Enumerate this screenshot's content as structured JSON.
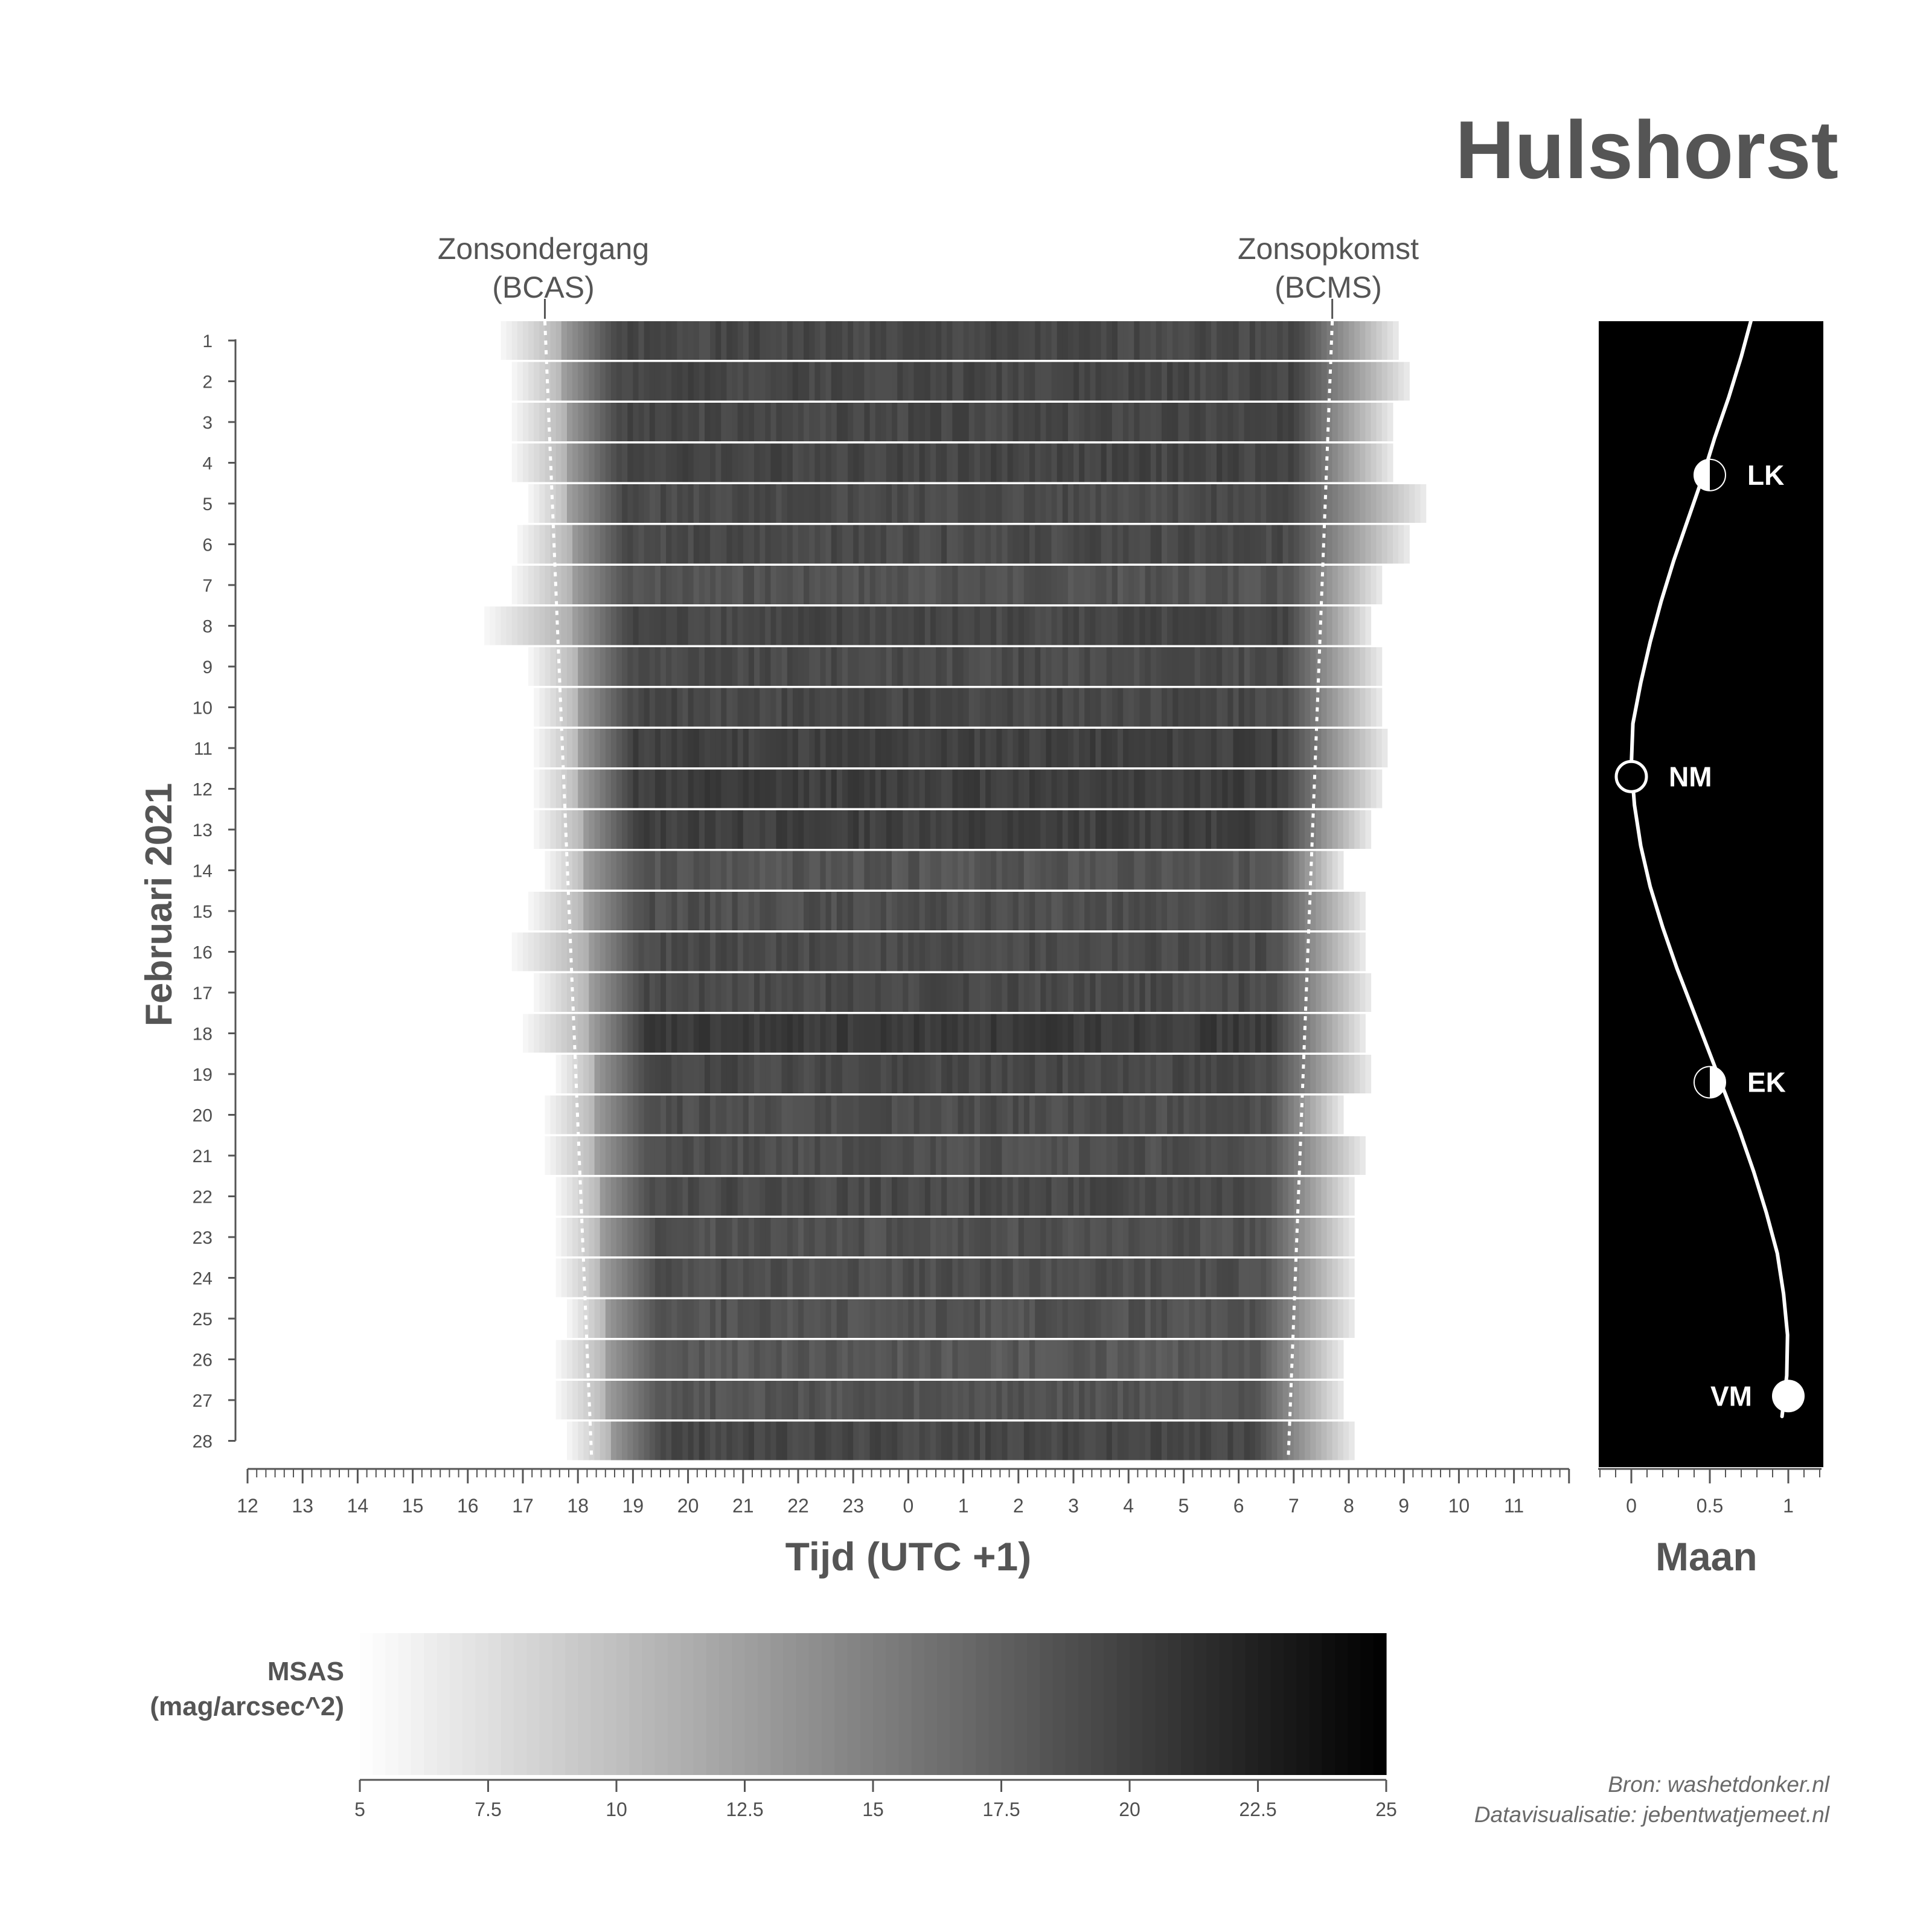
{
  "title": "Hulshorst",
  "annotations": {
    "sunset_line1": "Zonsondergang",
    "sunset_line2": "(BCAS)",
    "sunrise_line1": "Zonsopkomst",
    "sunrise_line2": "(BCMS)"
  },
  "colors": {
    "bright": "#ffffff",
    "dark": "#000000",
    "text": "#555555",
    "moon_panel": "#000000"
  },
  "chart_data": [
    {
      "type": "heatmap",
      "title": "Hulshorst",
      "xlabel": "Tijd (UTC +1)",
      "ylabel": "Februari 2021",
      "x_ticks": [
        "12",
        "13",
        "14",
        "15",
        "16",
        "17",
        "18",
        "19",
        "20",
        "21",
        "22",
        "23",
        "0",
        "1",
        "2",
        "3",
        "4",
        "5",
        "6",
        "7",
        "8",
        "9",
        "10",
        "11"
      ],
      "x_range_hours_after_noon": [
        0,
        24
      ],
      "days": [
        1,
        2,
        3,
        4,
        5,
        6,
        7,
        8,
        9,
        10,
        11,
        12,
        13,
        14,
        15,
        16,
        17,
        18,
        19,
        20,
        21,
        22,
        23,
        24,
        25,
        26,
        27,
        28
      ],
      "row_start_hour": [
        16.6,
        16.8,
        16.8,
        16.8,
        17.1,
        16.9,
        16.8,
        16.3,
        17.1,
        17.2,
        17.2,
        17.2,
        17.2,
        17.4,
        17.1,
        16.8,
        17.2,
        17.0,
        17.6,
        17.4,
        17.4,
        17.6,
        17.6,
        17.6,
        17.8,
        17.6,
        17.6,
        17.8
      ],
      "row_end_hour": [
        8.9,
        9.1,
        8.8,
        8.8,
        9.4,
        9.1,
        8.6,
        8.4,
        8.6,
        8.6,
        8.7,
        8.6,
        8.4,
        7.9,
        8.3,
        8.3,
        8.4,
        8.3,
        8.4,
        7.9,
        8.3,
        8.1,
        8.1,
        8.1,
        8.1,
        7.9,
        7.9,
        8.1
      ],
      "row_mean_msas": [
        19.4,
        19.6,
        19.5,
        19.7,
        19.2,
        19.3,
        18.6,
        19.5,
        19.2,
        19.5,
        20.0,
        20.2,
        20.1,
        18.4,
        18.9,
        19.2,
        19.3,
        20.4,
        19.4,
        19.0,
        18.9,
        19.3,
        18.7,
        18.9,
        18.6,
        18.2,
        18.5,
        19.5
      ],
      "sunset_bcas_hour": [
        17.4,
        18.25
      ],
      "sunrise_bcms_hour": [
        7.7,
        6.9
      ],
      "colorbar": {
        "label_line1": "MSAS",
        "label_line2": "(mag/arcsec^2)",
        "min": 5,
        "max": 25,
        "ticks": [
          "5",
          "7.5",
          "10",
          "12.5",
          "15",
          "17.5",
          "20",
          "22.5",
          "25"
        ],
        "colormap": "white-to-black"
      }
    },
    {
      "type": "line",
      "xlabel": "Maan",
      "x_ticks": [
        "0",
        "0.5",
        "1"
      ],
      "x_range": [
        0,
        1
      ],
      "y": "days 1-28",
      "illumination": [
        0.77,
        0.7,
        0.62,
        0.53,
        0.45,
        0.36,
        0.27,
        0.19,
        0.12,
        0.06,
        0.01,
        0.0,
        0.02,
        0.06,
        0.12,
        0.2,
        0.29,
        0.39,
        0.49,
        0.59,
        0.69,
        0.78,
        0.86,
        0.93,
        0.97,
        0.995,
        0.99,
        0.96
      ],
      "phases": [
        {
          "label": "LK",
          "day": 4.3,
          "illumination": 0.5
        },
        {
          "label": "NM",
          "day": 11.7,
          "illumination": 0.0
        },
        {
          "label": "EK",
          "day": 19.2,
          "illumination": 0.5
        },
        {
          "label": "VM",
          "day": 26.9,
          "illumination": 1.0
        }
      ]
    }
  ],
  "source": {
    "line1": "Bron: washetdonker.nl",
    "line2": "Datavisualisatie: jebentwatjemeet.nl"
  }
}
